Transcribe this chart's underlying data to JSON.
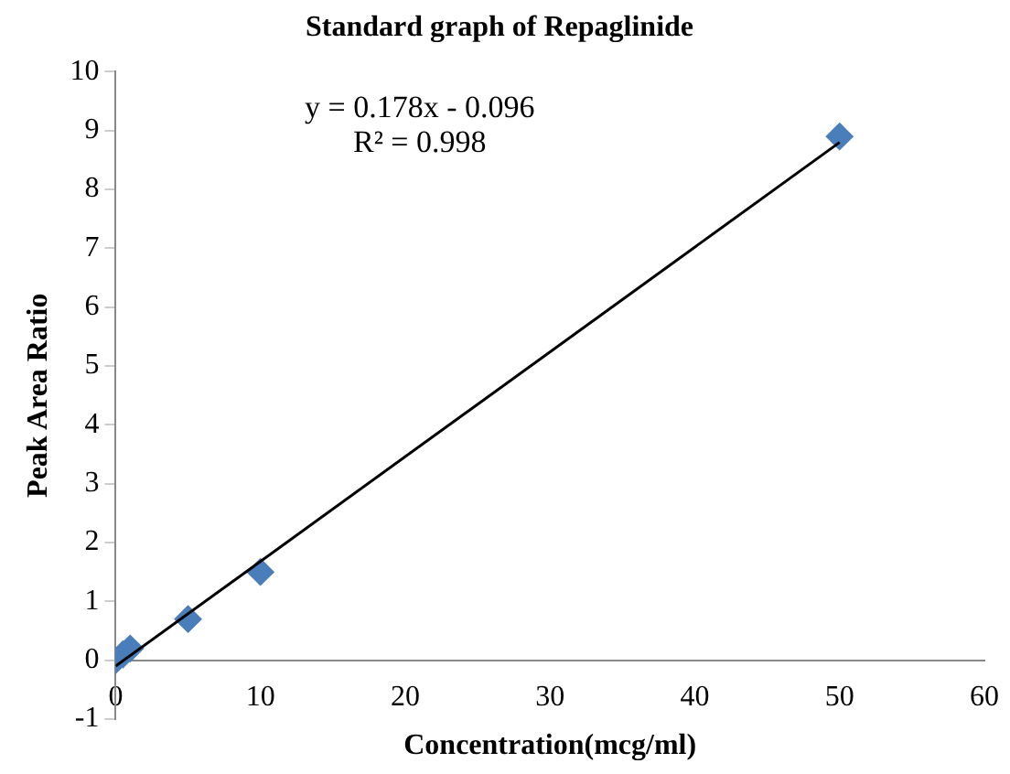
{
  "chart_data": {
    "type": "scatter",
    "title": "Standard graph of Repaglinide",
    "xlabel": "Concentration(mcg/ml)",
    "ylabel": "Peak Area Ratio",
    "x": [
      0,
      0.5,
      1,
      5,
      10,
      50
    ],
    "series": [
      {
        "type": "scatter",
        "color": "#4a7ebb",
        "marker": "diamond",
        "values": [
          0,
          0.1,
          0.2,
          0.7,
          1.5,
          8.9
        ]
      },
      {
        "type": "line",
        "color": "#000000",
        "marker": "none",
        "x": [
          0,
          50
        ],
        "values": [
          -0.1,
          8.8
        ]
      }
    ],
    "xlim": [
      0,
      60
    ],
    "xticks": [
      0,
      10,
      20,
      30,
      40,
      50,
      60
    ],
    "ylim": [
      -1,
      10
    ],
    "yticks": [
      -1,
      0,
      1,
      2,
      3,
      4,
      5,
      6,
      7,
      8,
      9,
      10
    ],
    "grid": false,
    "legend": false,
    "annotations": [
      "y = 0.178x - 0.096",
      "R² = 0.998"
    ]
  }
}
